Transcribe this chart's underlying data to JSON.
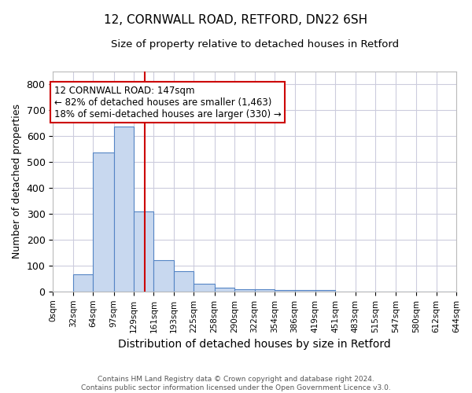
{
  "title1": "12, CORNWALL ROAD, RETFORD, DN22 6SH",
  "title2": "Size of property relative to detached houses in Retford",
  "xlabel": "Distribution of detached houses by size in Retford",
  "ylabel": "Number of detached properties",
  "footnote1": "Contains HM Land Registry data © Crown copyright and database right 2024.",
  "footnote2": "Contains public sector information licensed under the Open Government Licence v3.0.",
  "bin_edges": [
    0,
    32,
    64,
    97,
    129,
    161,
    193,
    225,
    258,
    290,
    322,
    354,
    386,
    419,
    451,
    483,
    515,
    547,
    580,
    612,
    644
  ],
  "bar_heights": [
    0,
    65,
    535,
    635,
    310,
    120,
    78,
    30,
    15,
    10,
    8,
    7,
    5,
    5,
    0,
    0,
    0,
    0,
    0,
    0
  ],
  "bar_color": "#c8d8ef",
  "bar_edge_color": "#5585c5",
  "property_size": 147,
  "vline_color": "#cc0000",
  "annotation_line1": "12 CORNWALL ROAD: 147sqm",
  "annotation_line2": "← 82% of detached houses are smaller (1,463)",
  "annotation_line3": "18% of semi-detached houses are larger (330) →",
  "annotation_box_color": "#ffffff",
  "annotation_border_color": "#cc0000",
  "ylim": [
    0,
    850
  ],
  "yticks": [
    0,
    100,
    200,
    300,
    400,
    500,
    600,
    700,
    800
  ],
  "xlabels": [
    "0sqm",
    "32sqm",
    "64sqm",
    "97sqm",
    "129sqm",
    "161sqm",
    "193sqm",
    "225sqm",
    "258sqm",
    "290sqm",
    "322sqm",
    "354sqm",
    "386sqm",
    "419sqm",
    "451sqm",
    "483sqm",
    "515sqm",
    "547sqm",
    "580sqm",
    "612sqm",
    "644sqm"
  ],
  "grid_color": "#ccccdd",
  "background_color": "#ffffff"
}
